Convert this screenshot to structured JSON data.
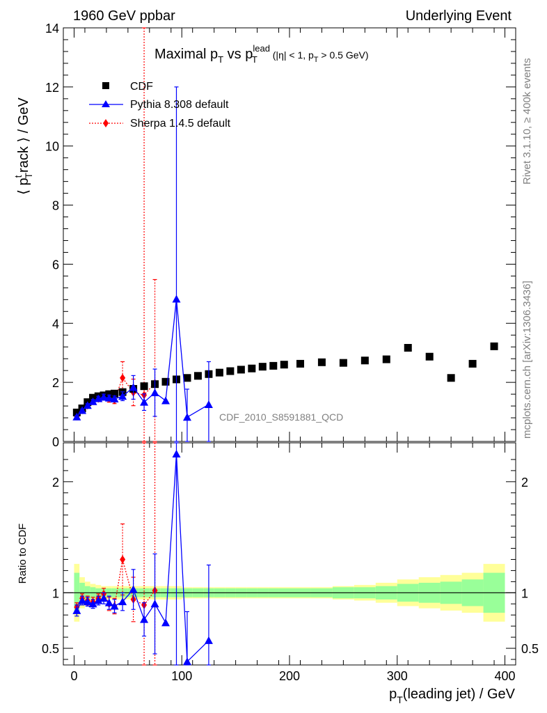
{
  "header": {
    "left": "1960 GeV ppbar",
    "right": "Underlying Event"
  },
  "side_labels": {
    "rivet": "Rivet 3.1.10, ≥ 400k events",
    "mcplots": "mcplots.cern.ch [arXiv:1306.3436]"
  },
  "analysis_id": "CDF_2010_S8591881_QCD",
  "colors": {
    "cdf": "#000000",
    "pythia": "#0000ff",
    "sherpa": "#ff0000",
    "band_inner": "#99ff99",
    "band_outer": "#ffff99"
  },
  "chart_data": [
    {
      "type": "scatter",
      "title_parts": {
        "t1": "Maximal p",
        "t1_sub": "T",
        "t2": " vs p",
        "t2_sup": "lead",
        "t2_sub": "T",
        "t3": " (|η| < 1, p",
        "t3_sub": "T",
        "t4": " > 0.5 GeV)"
      },
      "ylabel_parts": {
        "a": "⟨ p",
        "sup": "t",
        "sub": "T",
        "b": "rack ⟩ / GeV"
      },
      "xlim": [
        -10,
        410
      ],
      "ylim": [
        0,
        14
      ],
      "yticks": [
        0,
        2,
        4,
        6,
        8,
        10,
        12,
        14
      ],
      "ytick_labels": [
        "0",
        "2",
        "4",
        "6",
        "8",
        "10",
        "12",
        "14"
      ],
      "legend": [
        "CDF",
        "Pythia 8.308 default",
        "Sherpa 1.4.5 default"
      ],
      "series": [
        {
          "name": "CDF",
          "x": [
            2.5,
            7.5,
            12.5,
            17.5,
            22.5,
            27.5,
            32.5,
            37.5,
            45,
            55,
            65,
            75,
            85,
            95,
            105,
            115,
            125,
            135,
            145,
            155,
            165,
            175,
            185,
            195,
            210,
            230,
            250,
            270,
            290,
            310,
            330,
            350,
            370,
            390
          ],
          "y": [
            0.98,
            1.12,
            1.33,
            1.48,
            1.53,
            1.56,
            1.6,
            1.62,
            1.67,
            1.78,
            1.87,
            1.94,
            2.02,
            2.1,
            2.15,
            2.22,
            2.28,
            2.33,
            2.38,
            2.43,
            2.47,
            2.53,
            2.56,
            2.6,
            2.63,
            2.68,
            2.66,
            2.74,
            2.78,
            3.17,
            2.87,
            2.15,
            2.63,
            3.22
          ]
        },
        {
          "name": "Pythia 8.308 default",
          "x": [
            2.5,
            7.5,
            12.5,
            17.5,
            22.5,
            27.5,
            32.5,
            37.5,
            45,
            55,
            65,
            75,
            85,
            95,
            105,
            125
          ],
          "y": [
            0.83,
            1.05,
            1.22,
            1.35,
            1.45,
            1.5,
            1.47,
            1.44,
            1.53,
            1.83,
            1.33,
            1.65,
            1.38,
            4.82,
            0.82,
            1.25
          ],
          "err": [
            0.05,
            0.05,
            0.06,
            0.07,
            0.08,
            0.1,
            0.1,
            0.1,
            0.15,
            0.4,
            0.28,
            0.8,
            0,
            7.18,
            0.95,
            1.45
          ]
        },
        {
          "name": "Sherpa 1.4.5 default",
          "x": [
            2.5,
            7.5,
            12.5,
            17.5,
            22.5,
            27.5,
            32.5,
            37.5,
            45,
            55,
            65,
            75
          ],
          "y": [
            0.85,
            1.06,
            1.22,
            1.37,
            1.45,
            1.53,
            1.45,
            1.4,
            2.15,
            1.66,
            1.57,
            1.98
          ],
          "err": [
            0.05,
            0.05,
            0.06,
            0.07,
            0.08,
            0.1,
            0.12,
            0.12,
            0.55,
            0.45,
            14.0,
            3.5
          ]
        }
      ]
    },
    {
      "type": "scatter",
      "ylabel": "Ratio to CDF",
      "xlabel_parts": {
        "a": "p",
        "sub": "T",
        "b": "(leading jet) / GeV"
      },
      "xlim": [
        -10,
        410
      ],
      "ylim": [
        0.35,
        2.35
      ],
      "xticks": [
        0,
        100,
        200,
        300,
        400
      ],
      "xtick_labels": [
        "0",
        "100",
        "200",
        "300",
        "400"
      ],
      "yticks": [
        0.5,
        1,
        2
      ],
      "ytick_labels": [
        "0.5",
        "1",
        "2"
      ],
      "band_edges": [
        0,
        5,
        10,
        15,
        20,
        25,
        30,
        35,
        40,
        50,
        60,
        70,
        80,
        90,
        100,
        110,
        120,
        130,
        140,
        150,
        160,
        170,
        180,
        190,
        200,
        220,
        240,
        260,
        280,
        300,
        320,
        340,
        360,
        380,
        400
      ],
      "band_inner": [
        0.18,
        0.09,
        0.06,
        0.05,
        0.04,
        0.04,
        0.04,
        0.04,
        0.04,
        0.04,
        0.04,
        0.04,
        0.04,
        0.04,
        0.04,
        0.04,
        0.04,
        0.04,
        0.04,
        0.04,
        0.04,
        0.04,
        0.04,
        0.04,
        0.04,
        0.04,
        0.05,
        0.05,
        0.06,
        0.08,
        0.09,
        0.1,
        0.12,
        0.18,
        0.3
      ],
      "band_outer": [
        0.26,
        0.14,
        0.1,
        0.08,
        0.07,
        0.06,
        0.06,
        0.06,
        0.06,
        0.06,
        0.06,
        0.06,
        0.06,
        0.06,
        0.05,
        0.05,
        0.05,
        0.05,
        0.05,
        0.05,
        0.05,
        0.05,
        0.05,
        0.05,
        0.05,
        0.05,
        0.06,
        0.07,
        0.09,
        0.12,
        0.14,
        0.16,
        0.18,
        0.26,
        0.48
      ],
      "series": [
        {
          "name": "Pythia 8.308 default",
          "x": [
            2.5,
            7.5,
            12.5,
            17.5,
            22.5,
            27.5,
            32.5,
            37.5,
            45,
            55,
            65,
            75,
            85,
            95,
            105,
            125
          ],
          "y": [
            0.84,
            0.93,
            0.92,
            0.9,
            0.93,
            0.95,
            0.91,
            0.88,
            0.92,
            1.03,
            0.76,
            0.9,
            0.73,
            2.25,
            0.38,
            0.57
          ],
          "err": [
            0.05,
            0.04,
            0.04,
            0.04,
            0.04,
            0.05,
            0.06,
            0.06,
            0.08,
            0.18,
            0.15,
            0.45,
            0,
            3.3,
            0.45,
            0.68
          ]
        },
        {
          "name": "Sherpa 1.4.5 default",
          "x": [
            2.5,
            7.5,
            12.5,
            17.5,
            22.5,
            27.5,
            32.5,
            37.5,
            45,
            55,
            65,
            75
          ],
          "y": [
            0.87,
            0.95,
            0.93,
            0.92,
            0.95,
            0.99,
            0.9,
            0.88,
            1.3,
            0.94,
            0.89,
            1.02
          ],
          "err": [
            0.04,
            0.04,
            0.04,
            0.04,
            0.04,
            0.05,
            0.06,
            0.07,
            0.32,
            0.2,
            5.0,
            1.6
          ]
        }
      ]
    }
  ]
}
